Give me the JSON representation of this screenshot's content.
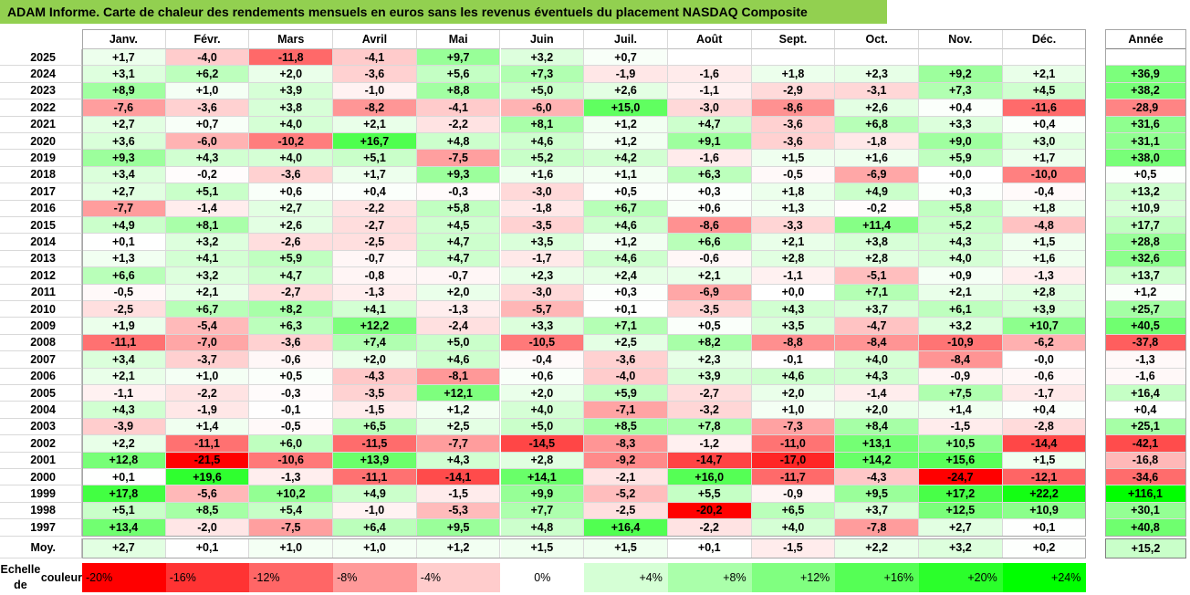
{
  "title": "ADAM Informe. Carte de chaleur des rendements mensuels en euros sans les revenus éventuels du placement NASDAQ Composite",
  "chart_data": {
    "type": "heatmap",
    "months": [
      "Janv.",
      "Févr.",
      "Mars",
      "Avril",
      "Mai",
      "Juin",
      "Juil.",
      "Août",
      "Sept.",
      "Oct.",
      "Nov.",
      "Déc."
    ],
    "annual_header": "Année",
    "average_label": "Moy.",
    "unit": "%",
    "rows": [
      {
        "year": "2025",
        "values": [
          1.7,
          -4.0,
          -11.8,
          -4.1,
          9.7,
          3.2,
          0.7,
          null,
          null,
          null,
          null,
          null
        ],
        "annual": null
      },
      {
        "year": "2024",
        "values": [
          3.1,
          6.2,
          2.0,
          -3.6,
          5.6,
          7.3,
          -1.9,
          -1.6,
          1.8,
          2.3,
          9.2,
          2.1
        ],
        "annual": 36.9
      },
      {
        "year": "2023",
        "values": [
          8.9,
          1.0,
          3.9,
          -1.0,
          8.8,
          5.0,
          2.6,
          -1.1,
          -2.9,
          -3.1,
          7.3,
          4.5
        ],
        "annual": 38.2
      },
      {
        "year": "2022",
        "values": [
          -7.6,
          -3.6,
          3.8,
          -8.2,
          -4.1,
          -6.0,
          15.0,
          -3.0,
          -8.6,
          2.6,
          0.4,
          -11.6
        ],
        "annual": -28.9
      },
      {
        "year": "2021",
        "values": [
          2.7,
          0.7,
          4.0,
          2.1,
          -2.2,
          8.1,
          1.2,
          4.7,
          -3.6,
          6.8,
          3.3,
          0.4
        ],
        "annual": 31.6
      },
      {
        "year": "2020",
        "values": [
          3.6,
          -6.0,
          -10.2,
          16.7,
          4.8,
          4.6,
          1.2,
          9.1,
          -3.6,
          -1.8,
          9.0,
          3.0
        ],
        "annual": 31.1
      },
      {
        "year": "2019",
        "values": [
          9.3,
          4.3,
          4.0,
          5.1,
          -7.5,
          5.2,
          4.2,
          -1.6,
          1.5,
          1.6,
          5.9,
          1.7
        ],
        "annual": 38.0
      },
      {
        "year": "2018",
        "values": [
          3.4,
          -0.2,
          -3.6,
          1.7,
          9.3,
          1.6,
          1.1,
          6.3,
          -0.5,
          -6.9,
          0.0,
          -10.0
        ],
        "annual": 0.5
      },
      {
        "year": "2017",
        "values": [
          2.7,
          5.1,
          0.6,
          0.4,
          -0.3,
          -3.0,
          0.5,
          0.3,
          1.8,
          4.9,
          0.3,
          -0.4
        ],
        "annual": 13.2
      },
      {
        "year": "2016",
        "values": [
          -7.7,
          -1.4,
          2.7,
          -2.2,
          5.8,
          -1.8,
          6.7,
          0.6,
          1.3,
          -0.2,
          5.8,
          1.8
        ],
        "annual": 10.9
      },
      {
        "year": "2015",
        "values": [
          4.9,
          8.1,
          2.6,
          -2.7,
          4.5,
          -3.5,
          4.6,
          -8.6,
          -3.3,
          11.4,
          5.2,
          -4.8
        ],
        "annual": 17.7
      },
      {
        "year": "2014",
        "values": [
          0.1,
          3.2,
          -2.6,
          -2.5,
          4.7,
          3.5,
          1.2,
          6.6,
          2.1,
          3.8,
          4.3,
          1.5
        ],
        "annual": 28.8
      },
      {
        "year": "2013",
        "values": [
          1.3,
          4.1,
          5.9,
          -0.7,
          4.7,
          -1.7,
          4.6,
          -0.6,
          2.8,
          2.8,
          4.0,
          1.6
        ],
        "annual": 32.6
      },
      {
        "year": "2012",
        "values": [
          6.6,
          3.2,
          4.7,
          -0.8,
          -0.7,
          2.3,
          2.4,
          2.1,
          -1.1,
          -5.1,
          0.9,
          -1.3
        ],
        "annual": 13.7
      },
      {
        "year": "2011",
        "values": [
          -0.5,
          2.1,
          -2.7,
          -1.3,
          2.0,
          -3.0,
          0.3,
          -6.9,
          0.0,
          7.1,
          2.1,
          2.8
        ],
        "annual": 1.2
      },
      {
        "year": "2010",
        "values": [
          -2.5,
          6.7,
          8.2,
          4.1,
          -1.3,
          -5.7,
          0.1,
          -3.5,
          4.3,
          3.7,
          6.1,
          3.9
        ],
        "annual": 25.7
      },
      {
        "year": "2009",
        "values": [
          1.9,
          -5.4,
          6.3,
          12.2,
          -2.4,
          3.3,
          7.1,
          0.5,
          3.5,
          -4.7,
          3.2,
          10.7
        ],
        "annual": 40.5
      },
      {
        "year": "2008",
        "values": [
          -11.1,
          -7.0,
          -3.6,
          7.4,
          5.0,
          -10.5,
          2.5,
          8.2,
          -8.8,
          -8.4,
          -10.9,
          -6.2
        ],
        "annual": -37.8
      },
      {
        "year": "2007",
        "values": [
          3.4,
          -3.7,
          -0.6,
          2.0,
          4.6,
          -0.4,
          -3.6,
          2.3,
          -0.1,
          4.0,
          -8.4,
          -0.0
        ],
        "annual": -1.3
      },
      {
        "year": "2006",
        "values": [
          2.1,
          1.0,
          0.5,
          -4.3,
          -8.1,
          0.6,
          -4.0,
          3.9,
          4.6,
          4.3,
          -0.9,
          -0.6
        ],
        "annual": -1.6
      },
      {
        "year": "2005",
        "values": [
          -1.1,
          -2.2,
          -0.3,
          -3.5,
          12.1,
          2.0,
          5.9,
          -2.7,
          2.0,
          -1.4,
          7.5,
          -1.7
        ],
        "annual": 16.4
      },
      {
        "year": "2004",
        "values": [
          4.3,
          -1.9,
          -0.1,
          -1.5,
          1.2,
          4.0,
          -7.1,
          -3.2,
          1.0,
          2.0,
          1.4,
          0.4
        ],
        "annual": 0.4
      },
      {
        "year": "2003",
        "values": [
          -3.9,
          1.4,
          -0.5,
          6.5,
          2.5,
          5.0,
          8.5,
          7.8,
          -7.3,
          8.4,
          -1.5,
          -2.8
        ],
        "annual": 25.1
      },
      {
        "year": "2002",
        "values": [
          2.2,
          -11.1,
          6.0,
          -11.5,
          -7.7,
          -14.5,
          -8.3,
          -1.2,
          -11.0,
          13.1,
          10.5,
          -14.4
        ],
        "annual": -42.1
      },
      {
        "year": "2001",
        "values": [
          12.8,
          -21.5,
          -10.6,
          13.9,
          4.3,
          2.8,
          -9.2,
          -14.7,
          -17.0,
          14.2,
          15.6,
          1.5
        ],
        "annual": -16.8
      },
      {
        "year": "2000",
        "values": [
          0.1,
          19.6,
          -1.3,
          -11.1,
          -14.1,
          14.1,
          -2.1,
          16.0,
          -11.7,
          -4.3,
          -24.7,
          -12.1
        ],
        "annual": -34.6
      },
      {
        "year": "1999",
        "values": [
          17.8,
          -5.6,
          10.2,
          4.9,
          -1.5,
          9.9,
          -5.2,
          5.5,
          -0.9,
          9.5,
          17.2,
          22.2
        ],
        "annual": 116.1
      },
      {
        "year": "1998",
        "values": [
          5.1,
          8.5,
          5.4,
          -1.0,
          -5.3,
          7.7,
          -2.5,
          -20.2,
          6.5,
          3.7,
          12.5,
          10.9
        ],
        "annual": 30.1
      },
      {
        "year": "1997",
        "values": [
          13.4,
          -2.0,
          -7.5,
          6.4,
          9.5,
          4.8,
          16.4,
          -2.2,
          4.0,
          -7.8,
          2.7,
          0.1
        ],
        "annual": 40.8
      }
    ],
    "average": {
      "values": [
        2.7,
        0.1,
        1.0,
        1.0,
        1.2,
        1.5,
        1.5,
        0.1,
        -1.5,
        2.2,
        3.2,
        0.2
      ],
      "annual": 15.2
    },
    "scale_label_line1": "Echelle de",
    "scale_label_line2": "couleur",
    "scale": [
      {
        "label": "-20%",
        "value": -20
      },
      {
        "label": "-16%",
        "value": -16
      },
      {
        "label": "-12%",
        "value": -12
      },
      {
        "label": "-8%",
        "value": -8
      },
      {
        "label": "-4%",
        "value": -4
      },
      {
        "label": "0%",
        "value": 0
      },
      {
        "label": "+4%",
        "value": 4
      },
      {
        "label": "+8%",
        "value": 8
      },
      {
        "label": "+12%",
        "value": 12
      },
      {
        "label": "+16%",
        "value": 16
      },
      {
        "label": "+20%",
        "value": 20
      },
      {
        "label": "+24%",
        "value": 24
      }
    ],
    "colors": {
      "negative": "#ff0000",
      "neutral": "#ffffff",
      "positive": "#00ff00",
      "title_bar": "#92d050"
    }
  }
}
